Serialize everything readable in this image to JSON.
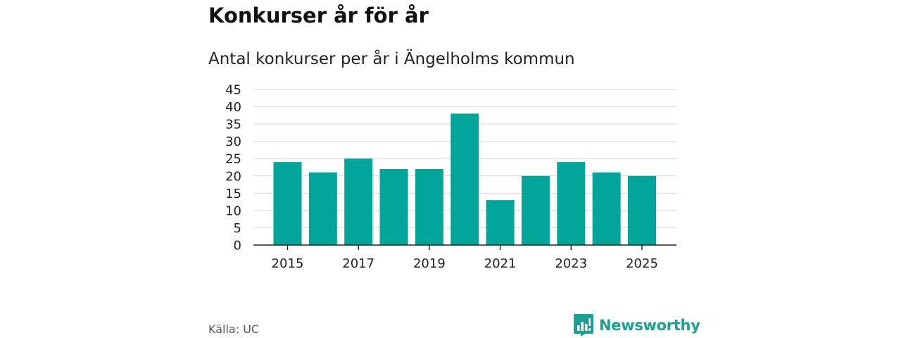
{
  "colors": {
    "bar": "#02a59a",
    "grid": "#dddddd",
    "axis": "#222222",
    "brand": "#1aa193"
  },
  "source_label": "Källa: UC",
  "brand": {
    "name": "Newsworthy",
    "icon": "newsworthy-logo-icon"
  },
  "chart_data": {
    "type": "bar",
    "title": "Konkurser år för år",
    "subtitle": "Antal konkurser per år i Ängelholms kommun",
    "xlabel": "",
    "ylabel": "",
    "categories": [
      "2015",
      "2016",
      "2017",
      "2018",
      "2019",
      "2020",
      "2021",
      "2022",
      "2023",
      "2024",
      "2025"
    ],
    "values": [
      24,
      21,
      25,
      22,
      22,
      38,
      13,
      20,
      24,
      21,
      20
    ],
    "x_tick_labels": [
      "2015",
      "2017",
      "2019",
      "2021",
      "2023",
      "2025"
    ],
    "y_ticks": [
      0,
      5,
      10,
      15,
      20,
      25,
      30,
      35,
      40,
      45
    ],
    "ylim": [
      0,
      45
    ],
    "grid": true,
    "legend": "none"
  }
}
